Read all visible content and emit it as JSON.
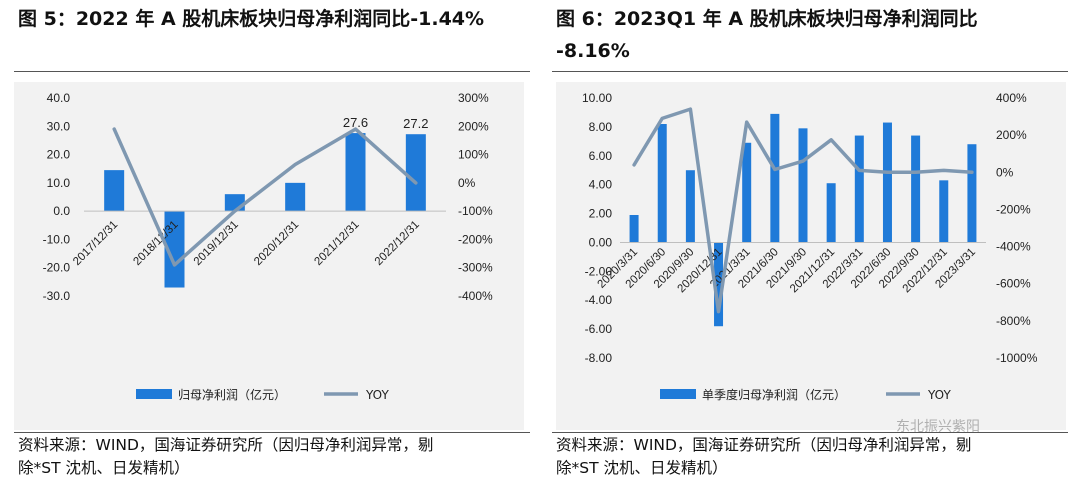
{
  "left": {
    "title": "图 5：2022 年 A 股机床板块归母净利润同比-1.44%",
    "source_line1": "资料来源：WIND，国海证券研究所（因归母净利润异常，剔",
    "source_line2": "除*ST 沈机、日发精机）"
  },
  "right": {
    "title_line1": "图 6：2023Q1 年 A 股机床板块归母净利润同比",
    "title_line2": "-8.16%",
    "source_line1": "资料来源：WIND，国海证券研究所（因归母净利润异常，剔",
    "source_line2": "除*ST 沈机、日发精机）"
  },
  "watermark": "东北振兴紫阳",
  "colors": {
    "bar": "#1f7ad8",
    "line": "#7f98b1",
    "axis_text": "#222222",
    "background": "#f2f2f2"
  },
  "chart_data": [
    {
      "type": "bar",
      "categories": [
        "2017/12/31",
        "2018/12/31",
        "2019/12/31",
        "2020/12/31",
        "2021/12/31",
        "2022/12/31"
      ],
      "series": [
        {
          "name": "归母净利润（亿元）",
          "kind": "bar",
          "axis": "left",
          "values": [
            14.5,
            -27.0,
            6.0,
            10.0,
            27.6,
            27.2
          ]
        },
        {
          "name": "YOY",
          "kind": "line",
          "axis": "right",
          "values": [
            190,
            -290,
            -100,
            65,
            190,
            0
          ]
        }
      ],
      "data_labels": [
        null,
        null,
        null,
        null,
        "27.6",
        "27.2"
      ],
      "y_left": {
        "min": -30,
        "max": 40,
        "step": 10,
        "tick_labels": [
          "-30.0",
          "-20.0",
          "-10.0",
          "0.0",
          "10.0",
          "20.0",
          "30.0",
          "40.0"
        ]
      },
      "y_right": {
        "min": -400,
        "max": 300,
        "step": 100,
        "tick_labels": [
          "-400%",
          "-300%",
          "-200%",
          "-100%",
          "0%",
          "100%",
          "200%",
          "300%"
        ]
      },
      "legend": [
        "归母净利润（亿元）",
        "YOY"
      ],
      "legend_position": "bottom"
    },
    {
      "type": "bar",
      "categories": [
        "2020/3/31",
        "2020/6/30",
        "2020/9/30",
        "2020/12/31",
        "2021/3/31",
        "2021/6/30",
        "2021/9/30",
        "2021/12/31",
        "2022/3/31",
        "2022/6/30",
        "2022/9/30",
        "2022/12/31",
        "2023/3/31"
      ],
      "series": [
        {
          "name": "单季度归母净利润（亿元）",
          "kind": "bar",
          "axis": "left",
          "values": [
            1.9,
            8.2,
            5.0,
            -5.8,
            6.9,
            8.9,
            7.9,
            4.1,
            7.4,
            8.3,
            7.4,
            4.3,
            6.8
          ]
        },
        {
          "name": "YOY",
          "kind": "line",
          "axis": "right",
          "values": [
            40,
            290,
            340,
            -750,
            270,
            15,
            60,
            175,
            10,
            0,
            0,
            10,
            0
          ]
        }
      ],
      "y_left": {
        "min": -8,
        "max": 10,
        "step": 2,
        "tick_labels": [
          "-8.00",
          "-6.00",
          "-4.00",
          "-2.00",
          "0.00",
          "2.00",
          "4.00",
          "6.00",
          "8.00",
          "10.00"
        ]
      },
      "y_right": {
        "min": -1000,
        "max": 400,
        "step": 200,
        "tick_labels": [
          "-1000%",
          "-800%",
          "-600%",
          "-400%",
          "-200%",
          "0%",
          "200%",
          "400%"
        ]
      },
      "legend": [
        "单季度归母净利润（亿元）",
        "YOY"
      ],
      "legend_position": "bottom"
    }
  ]
}
